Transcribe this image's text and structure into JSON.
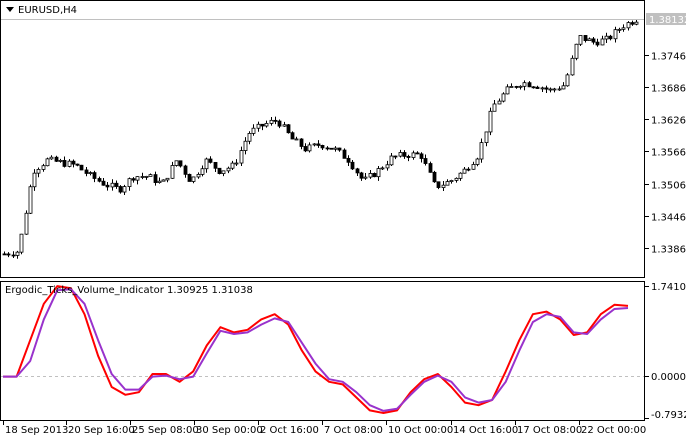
{
  "symbol_label": "EURUSD,H4",
  "current_price": "1.38132",
  "price_axis": [
    "1.37460",
    "1.36860",
    "1.36260",
    "1.35660",
    "1.35060",
    "1.34460",
    "1.33860"
  ],
  "price_axis_values": [
    1.3746,
    1.3686,
    1.3626,
    1.3566,
    1.3506,
    1.3446,
    1.3386
  ],
  "indicator": {
    "label": "Ergodic_Ticks_Volume_Indicator 1.30925 1.31038",
    "axis": [
      "1.74102",
      "0.00000",
      "-0.79329"
    ],
    "colors": {
      "main": "#ff0000",
      "signal": "#9932cc"
    }
  },
  "time_axis": [
    "18 Sep 2013",
    "20 Sep 16:00",
    "25 Sep 08:00",
    "30 Sep 00:00",
    "2 Oct 16:00",
    "7 Oct 08:00",
    "10 Oct 00:00",
    "14 Oct 16:00",
    "17 Oct 08:00",
    "22 Oct 00:00"
  ],
  "chart_data": [
    {
      "type": "candlestick",
      "title": "EURUSD,H4",
      "ylim": [
        1.3362,
        1.383
      ],
      "close_trace": [
        1.3375,
        1.338,
        1.353,
        1.355,
        1.3545,
        1.354,
        1.352,
        1.3505,
        1.3495,
        1.352,
        1.352,
        1.3505,
        1.355,
        1.351,
        1.355,
        1.353,
        1.354,
        1.36,
        1.3615,
        1.3625,
        1.359,
        1.357,
        1.358,
        1.357,
        1.355,
        1.351,
        1.353,
        1.3555,
        1.356,
        1.356,
        1.35,
        1.351,
        1.353,
        1.356,
        1.365,
        1.368,
        1.3695,
        1.369,
        1.368,
        1.369,
        1.378,
        1.377,
        1.3775,
        1.38,
        1.3813
      ]
    },
    {
      "type": "line",
      "title": "Ergodic_Ticks_Volume_Indicator",
      "ylim": [
        -0.79329,
        1.74102
      ],
      "series": [
        {
          "values": [
            0,
            0,
            0.7,
            1.4,
            1.74,
            1.7,
            1.2,
            0.4,
            -0.2,
            -0.35,
            -0.3,
            0.05,
            0.05,
            -0.1,
            0.1,
            0.6,
            0.95,
            0.85,
            0.9,
            1.1,
            1.2,
            1.0,
            0.5,
            0.1,
            -0.1,
            -0.15,
            -0.4,
            -0.65,
            -0.7,
            -0.65,
            -0.3,
            -0.05,
            0.05,
            -0.2,
            -0.5,
            -0.55,
            -0.45,
            0.1,
            0.7,
            1.2,
            1.25,
            1.1,
            0.8,
            0.85,
            1.2,
            1.38,
            1.36
          ]
        },
        {
          "values": [
            0,
            0,
            0.3,
            1.1,
            1.66,
            1.68,
            1.4,
            0.7,
            0.05,
            -0.25,
            -0.25,
            0.0,
            0.02,
            -0.05,
            0.0,
            0.45,
            0.88,
            0.82,
            0.85,
            1.0,
            1.12,
            1.05,
            0.65,
            0.25,
            -0.05,
            -0.1,
            -0.3,
            -0.55,
            -0.66,
            -0.62,
            -0.35,
            -0.1,
            0.02,
            -0.1,
            -0.4,
            -0.5,
            -0.45,
            -0.1,
            0.5,
            1.05,
            1.2,
            1.15,
            0.85,
            0.82,
            1.1,
            1.3,
            1.32
          ]
        }
      ]
    }
  ]
}
